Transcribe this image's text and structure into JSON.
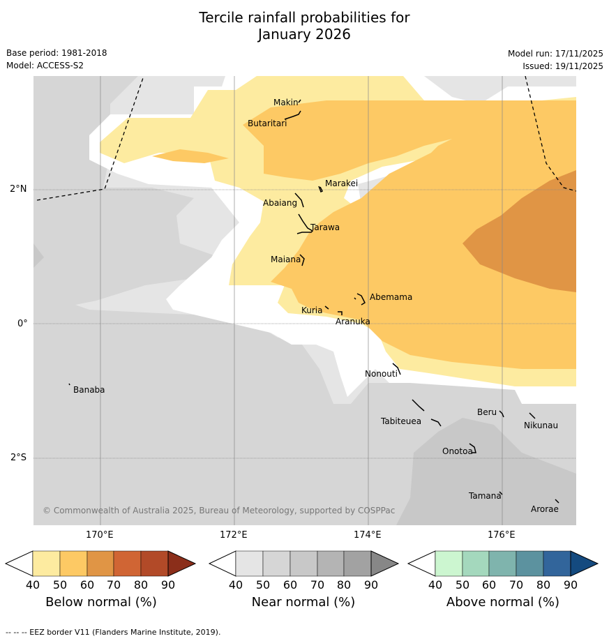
{
  "title": {
    "line1": "Tercile rainfall probabilities for",
    "line2": "January 2026"
  },
  "meta": {
    "base_period": "Base period: 1981-2018",
    "model": "Model: ACCESS-S2",
    "model_run": "Model run: 17/11/2025",
    "issued": "Issued: 19/11/2025"
  },
  "map": {
    "copyright": "© Commonwealth of Australia 2025, Bureau of Meteorology, supported by COSPPac",
    "lat_labels": [
      "2°N",
      "0°",
      "2°S"
    ],
    "lon_labels": [
      "170°E",
      "172°E",
      "174°E",
      "176°E"
    ],
    "islands": [
      "Makin",
      "Butaritari",
      "Marakei",
      "Abaiang",
      "Tarawa",
      "Maiana",
      "Abemama",
      "Kuria",
      "Aranuka",
      "Nonouti",
      "Banaba",
      "Beru",
      "Nikunau",
      "Tabiteuea",
      "Onotoa",
      "Tamana",
      "Arorae"
    ],
    "colors": {
      "below_40": "#fdeba0",
      "below_50": "#fdc964",
      "below_60": "#e09545",
      "near_40": "#e5e5e5",
      "near_50": "#d6d6d6",
      "near_60": "#c8c8c8"
    }
  },
  "colorbars": [
    {
      "title": "Below normal (%)",
      "ticks": [
        "40",
        "50",
        "60",
        "70",
        "80",
        "90"
      ],
      "colors": [
        "#fdeba0",
        "#fdc964",
        "#e09545",
        "#d06534",
        "#b24a28",
        "#8b2e1a"
      ]
    },
    {
      "title": "Near normal (%)",
      "ticks": [
        "40",
        "50",
        "60",
        "70",
        "80",
        "90"
      ],
      "colors": [
        "#e5e5e5",
        "#d6d6d6",
        "#c8c8c8",
        "#b4b4b4",
        "#a2a2a2",
        "#878787"
      ]
    },
    {
      "title": "Above normal (%)",
      "ticks": [
        "40",
        "50",
        "60",
        "70",
        "80",
        "90"
      ],
      "colors": [
        "#ccf6d0",
        "#a4d8bd",
        "#7fb4ad",
        "#5c929f",
        "#32659b",
        "#144a7f"
      ]
    }
  ],
  "footer": "--  --  -- EEZ border V11 (Flanders Marine Institute, 2019)."
}
